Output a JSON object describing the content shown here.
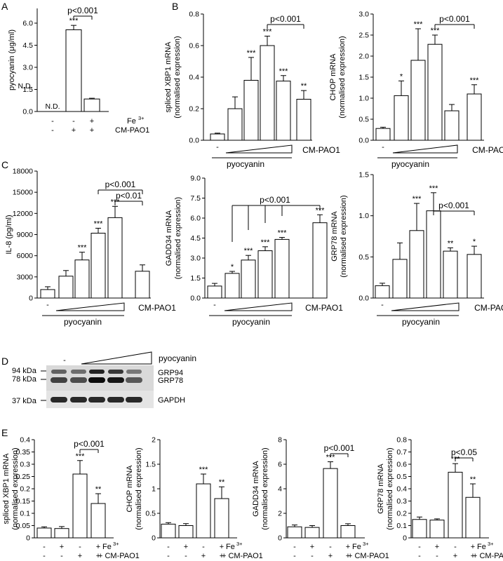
{
  "panels": {
    "A": "A",
    "B": "B",
    "C": "C",
    "D": "D",
    "E": "E"
  },
  "common": {
    "pyocyanin": "pyocyanin",
    "cm_pao1": "CM-PAO1",
    "minus": "-",
    "plus": "+",
    "fe": "Fe",
    "fe_sup": "3+",
    "nd": "N.D."
  },
  "chart_data": [
    {
      "id": "A",
      "type": "bar",
      "ylabel": "pyocyanin (μg/ml)",
      "ylim": [
        0,
        7.0
      ],
      "yticks": [
        0.0,
        1.5,
        3.0,
        4.5,
        6.0
      ],
      "categories": [
        "-/-",
        "-/+",
        "+/+"
      ],
      "values": [
        0,
        5.55,
        0.85
      ],
      "errors": [
        0,
        0.3,
        0.05
      ],
      "sig": [
        "N.D.",
        "***",
        ""
      ],
      "row_labels": [
        "Fe3+",
        "CM-PAO1"
      ],
      "row_signs": [
        [
          "-",
          "-",
          "+"
        ],
        [
          "-",
          "+",
          "+"
        ]
      ],
      "brackets": [
        {
          "text": "p<0.001"
        }
      ]
    },
    {
      "id": "B1",
      "type": "bar",
      "ylabel": "spliced XBP1 mRNA (normalised expression)",
      "ylim": [
        0,
        0.8
      ],
      "yticks": [
        0.0,
        0.2,
        0.4,
        0.6,
        0.8
      ],
      "categories": [
        "-",
        "p1",
        "p2",
        "p3",
        "p4",
        "CM-PAO1"
      ],
      "values": [
        0.04,
        0.2,
        0.38,
        0.6,
        0.375,
        0.26
      ],
      "errors": [
        0.005,
        0.075,
        0.145,
        0.06,
        0.035,
        0.055
      ],
      "sig": [
        "",
        "",
        "***",
        "***",
        "***",
        "**"
      ],
      "xlabel": "pyocyanin",
      "brackets": [
        {
          "text": "p<0.001"
        }
      ]
    },
    {
      "id": "B2",
      "type": "bar",
      "ylabel": "CHOP mRNA (normalised expression)",
      "ylim": [
        0,
        3.0
      ],
      "yticks": [
        0.0,
        0.5,
        1.0,
        1.5,
        2.0,
        2.5,
        3.0
      ],
      "categories": [
        "-",
        "p1",
        "p2",
        "p3",
        "p4",
        "CM-PAO1"
      ],
      "values": [
        0.28,
        1.06,
        1.9,
        2.28,
        0.7,
        1.1
      ],
      "errors": [
        0.03,
        0.35,
        0.75,
        0.22,
        0.15,
        0.22
      ],
      "sig": [
        "",
        "*",
        "***",
        "***",
        "",
        "***"
      ],
      "xlabel": "pyocyanin",
      "brackets": [
        {
          "text": "p<0.001"
        }
      ]
    },
    {
      "id": "C1",
      "type": "bar",
      "ylabel": "IL-8 (pg/ml)",
      "ylim": [
        0,
        18000
      ],
      "yticks": [
        0,
        3000,
        6000,
        9000,
        12000,
        15000,
        18000
      ],
      "categories": [
        "-",
        "p1",
        "p2",
        "p3",
        "p4",
        "CM-PAO1"
      ],
      "values": [
        1200,
        3100,
        5400,
        9200,
        11400,
        3800
      ],
      "errors": [
        400,
        800,
        1100,
        700,
        1600,
        900
      ],
      "sig": [
        "",
        "",
        "***",
        "***",
        "***",
        ""
      ],
      "xlabel": "pyocyanin",
      "brackets": [
        {
          "text": "p<0.001"
        },
        {
          "text": "p<0.01"
        }
      ]
    },
    {
      "id": "C2",
      "type": "bar",
      "ylabel": "GADD34 mRNA (normalised expression)",
      "ylim": [
        0,
        9.0
      ],
      "yticks": [
        0.0,
        1.5,
        3.0,
        4.5,
        6.0,
        7.5,
        9.0
      ],
      "categories": [
        "-",
        "p1",
        "p2",
        "p3",
        "p4",
        "CM-PAO1"
      ],
      "values": [
        0.9,
        1.85,
        2.85,
        3.55,
        4.4,
        5.65
      ],
      "errors": [
        0.2,
        0.15,
        0.35,
        0.3,
        0.15,
        0.6
      ],
      "sig": [
        "",
        "*",
        "***",
        "***",
        "***",
        "***"
      ],
      "xlabel": "pyocyanin",
      "brackets": [
        {
          "text": "p<0.001"
        }
      ]
    },
    {
      "id": "C3",
      "type": "bar",
      "ylabel": "GRP78 mRNA (normalised expression)",
      "ylim": [
        0,
        1.5
      ],
      "yticks": [
        0.0,
        0.5,
        1.0,
        1.5
      ],
      "categories": [
        "-",
        "p1",
        "p2",
        "p3",
        "p4",
        "CM-PAO1"
      ],
      "values": [
        0.15,
        0.47,
        0.82,
        1.06,
        0.57,
        0.53
      ],
      "errors": [
        0.03,
        0.2,
        0.33,
        0.22,
        0.04,
        0.1
      ],
      "sig": [
        "",
        "",
        "***",
        "***",
        "**",
        "*"
      ],
      "xlabel": "pyocyanin",
      "brackets": [
        {
          "text": "p<0.001"
        }
      ]
    },
    {
      "id": "E1",
      "type": "bar",
      "ylabel": "spliced XBP1 mRNA (normalised expression)",
      "ylim": [
        0,
        0.4
      ],
      "yticks": [
        0.0,
        0.05,
        0.1,
        0.15,
        0.2,
        0.25,
        0.3,
        0.35,
        0.4
      ],
      "ytick_labels": [
        "0",
        "0.05",
        "0.1",
        "0.15",
        "0.2",
        "0.25",
        "0.3",
        "0.35",
        "0.4"
      ],
      "categories": [
        "-/-",
        "+/-",
        "-/+",
        "+/+"
      ],
      "values": [
        0.04,
        0.038,
        0.26,
        0.14
      ],
      "errors": [
        0.005,
        0.008,
        0.055,
        0.04
      ],
      "sig": [
        "",
        "",
        "***",
        "**"
      ],
      "row_signs": [
        [
          "-",
          "+",
          "-",
          "+"
        ],
        [
          "-",
          "-",
          "+",
          "+"
        ]
      ],
      "brackets": [
        {
          "text": "p<0.001"
        }
      ]
    },
    {
      "id": "E2",
      "type": "bar",
      "ylabel": "CHOP mRNA (normalised expression)",
      "ylim": [
        0,
        2
      ],
      "yticks": [
        0,
        0.5,
        1,
        1.5,
        2
      ],
      "ytick_labels": [
        "0",
        "0.5",
        "1",
        "1.5",
        "2"
      ],
      "categories": [
        "-/-",
        "+/-",
        "-/+",
        "+/+"
      ],
      "values": [
        0.28,
        0.25,
        1.1,
        0.8
      ],
      "errors": [
        0.03,
        0.04,
        0.2,
        0.24
      ],
      "sig": [
        "",
        "",
        "***",
        "**"
      ],
      "row_signs": [
        [
          "-",
          "+",
          "-",
          "+"
        ],
        [
          "-",
          "-",
          "+",
          "+"
        ]
      ],
      "brackets": []
    },
    {
      "id": "E3",
      "type": "bar",
      "ylabel": "GADD34 mRNA (normalised expression)",
      "ylim": [
        0,
        8
      ],
      "yticks": [
        0,
        2,
        4,
        6,
        8
      ],
      "ytick_labels": [
        "0",
        "2",
        "4",
        "6",
        "8"
      ],
      "categories": [
        "-/-",
        "+/-",
        "-/+",
        "+/+"
      ],
      "values": [
        0.9,
        0.85,
        5.65,
        1.0
      ],
      "errors": [
        0.15,
        0.15,
        0.55,
        0.15
      ],
      "sig": [
        "",
        "",
        "***",
        ""
      ],
      "row_signs": [
        [
          "-",
          "+",
          "-",
          "+"
        ],
        [
          "-",
          "-",
          "+",
          "+"
        ]
      ],
      "brackets": [
        {
          "text": "p<0.001"
        }
      ]
    },
    {
      "id": "E4",
      "type": "bar",
      "ylabel": "GRP78 mRNA (normalised expression)",
      "ylim": [
        0,
        0.8
      ],
      "yticks": [
        0,
        0.1,
        0.2,
        0.3,
        0.4,
        0.5,
        0.6,
        0.7,
        0.8
      ],
      "ytick_labels": [
        "0",
        "0.1",
        "0.2",
        "0.3",
        "0.4",
        "0.5",
        "0.6",
        "0.7",
        "0.8"
      ],
      "categories": [
        "-/-",
        "+/-",
        "-/+",
        "+/+"
      ],
      "values": [
        0.15,
        0.145,
        0.535,
        0.33
      ],
      "errors": [
        0.02,
        0.01,
        0.07,
        0.11
      ],
      "sig": [
        "",
        "",
        "***",
        "**"
      ],
      "row_signs": [
        [
          "-",
          "+",
          "-",
          "+"
        ],
        [
          "-",
          "-",
          "+",
          "+"
        ]
      ],
      "brackets": [
        {
          "text": "p<0.05"
        }
      ]
    }
  ],
  "blot": {
    "treatment": "pyocyanin",
    "lane0": "-",
    "markers": [
      "94 kDa",
      "78 kDa",
      "37 kDa"
    ],
    "bands": [
      "GRP94",
      "GRP78",
      "GAPDH"
    ]
  }
}
